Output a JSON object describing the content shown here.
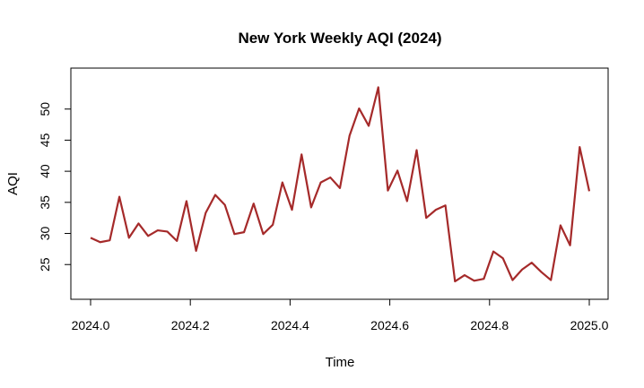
{
  "chart_data": {
    "type": "line",
    "title": "New York Weekly AQI (2024)",
    "xlabel": "Time",
    "ylabel": "AQI",
    "xlim": [
      2024.0,
      2025.0
    ],
    "ylim": [
      21.0,
      55.0
    ],
    "x_ticks": [
      2024.0,
      2024.2,
      2024.4,
      2024.6,
      2024.8,
      2025.0
    ],
    "x_tick_labels": [
      "2024.0",
      "2024.2",
      "2024.4",
      "2024.6",
      "2024.8",
      "2025.0"
    ],
    "y_ticks": [
      25,
      30,
      35,
      40,
      45,
      50
    ],
    "y_tick_labels": [
      "25",
      "30",
      "35",
      "40",
      "45",
      "50"
    ],
    "grid": false,
    "legend": "none",
    "line_color": "#a52a2a",
    "series": [
      {
        "x_start": 2024.0,
        "x_step": 0.01923,
        "values": [
          29.3,
          28.6,
          28.9,
          35.9,
          29.3,
          31.6,
          29.6,
          30.5,
          30.3,
          28.8,
          35.2,
          27.2,
          33.3,
          36.2,
          34.6,
          29.9,
          30.2,
          34.8,
          29.9,
          31.4,
          38.2,
          33.8,
          42.7,
          34.2,
          38.2,
          39.0,
          37.3,
          45.7,
          50.1,
          47.3,
          53.5,
          36.9,
          40.1,
          35.2,
          43.4,
          32.5,
          33.8,
          34.5,
          22.3,
          23.3,
          22.4,
          22.7,
          27.1,
          26.0,
          22.5,
          24.2,
          25.3,
          23.8,
          22.5,
          31.3,
          28.1,
          43.9,
          36.8
        ]
      }
    ]
  }
}
